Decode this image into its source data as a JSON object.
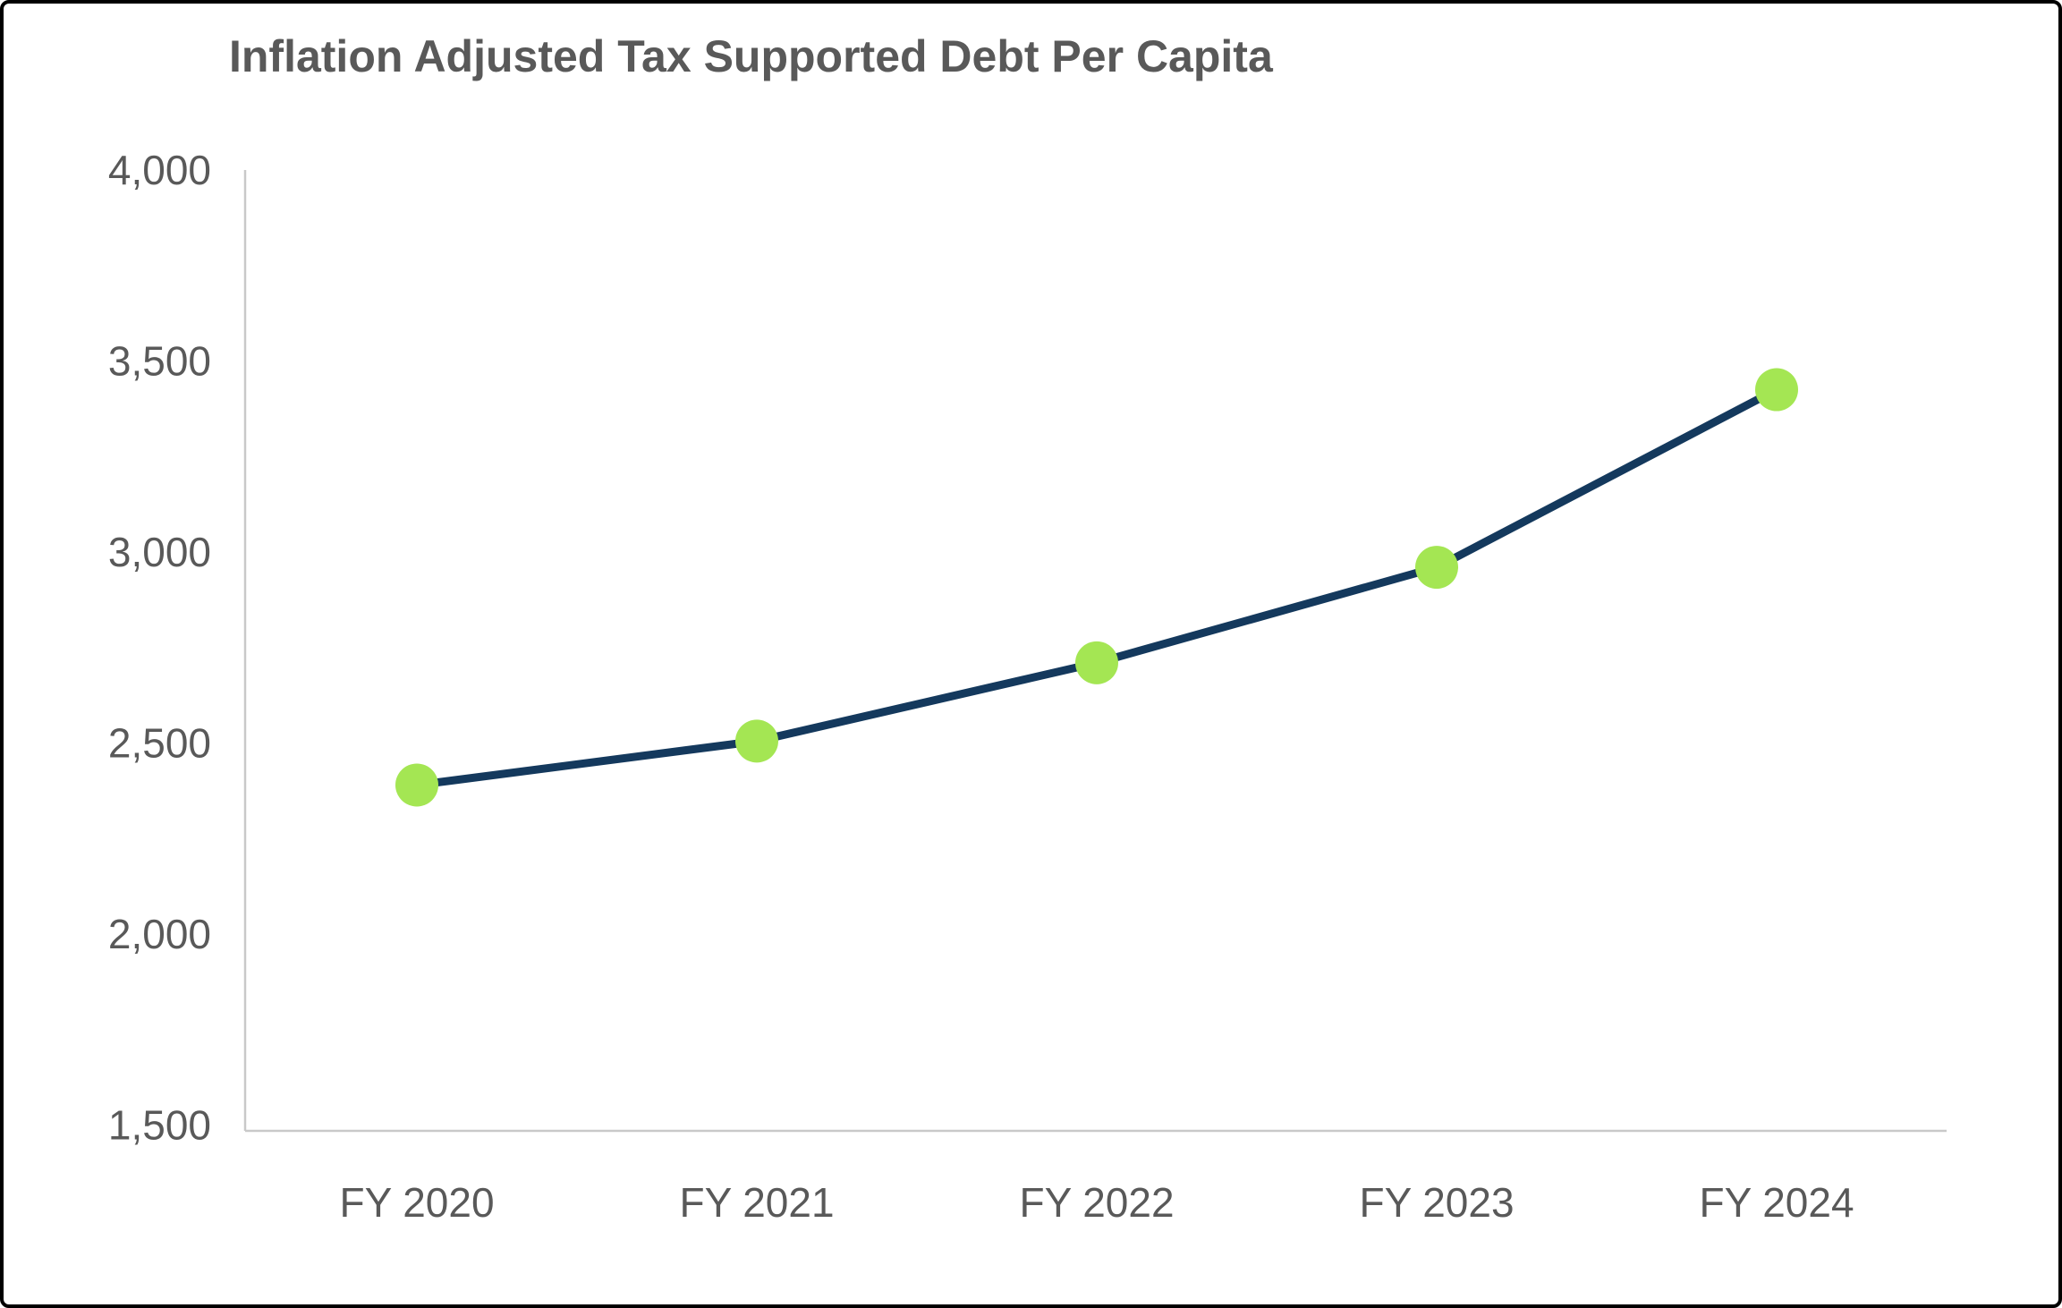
{
  "chart_data": {
    "type": "line",
    "title": "Inflation Adjusted Tax Supported Debt Per Capita",
    "categories": [
      "FY 2020",
      "FY 2021",
      "FY 2022",
      "FY 2023",
      "FY 2024"
    ],
    "series": [
      {
        "name": "Inflation Adjusted Tax Supported Debt Per Capita",
        "values": [
          2390,
          2505,
          2710,
          2960,
          3425
        ]
      }
    ],
    "xlabel": "",
    "ylabel": "",
    "ylim": [
      1500,
      4000
    ],
    "ytick_interval": 500,
    "yticks": [
      {
        "value": 4000,
        "label": "4,000"
      },
      {
        "value": 3500,
        "label": "3,500"
      },
      {
        "value": 3000,
        "label": "3,000"
      },
      {
        "value": 2500,
        "label": "2,500"
      },
      {
        "value": 2000,
        "label": "2,000"
      },
      {
        "value": 1500,
        "label": "1,500"
      }
    ],
    "grid": false,
    "legend": "none",
    "marker_style": "filled-circle",
    "colors": {
      "line": "#14395D",
      "marker": "#A4E653",
      "axis": "#C9C9C9",
      "text": "#595959",
      "title_text": "#595959",
      "background": "#FFFFFF",
      "frame_border": "#000000"
    }
  }
}
